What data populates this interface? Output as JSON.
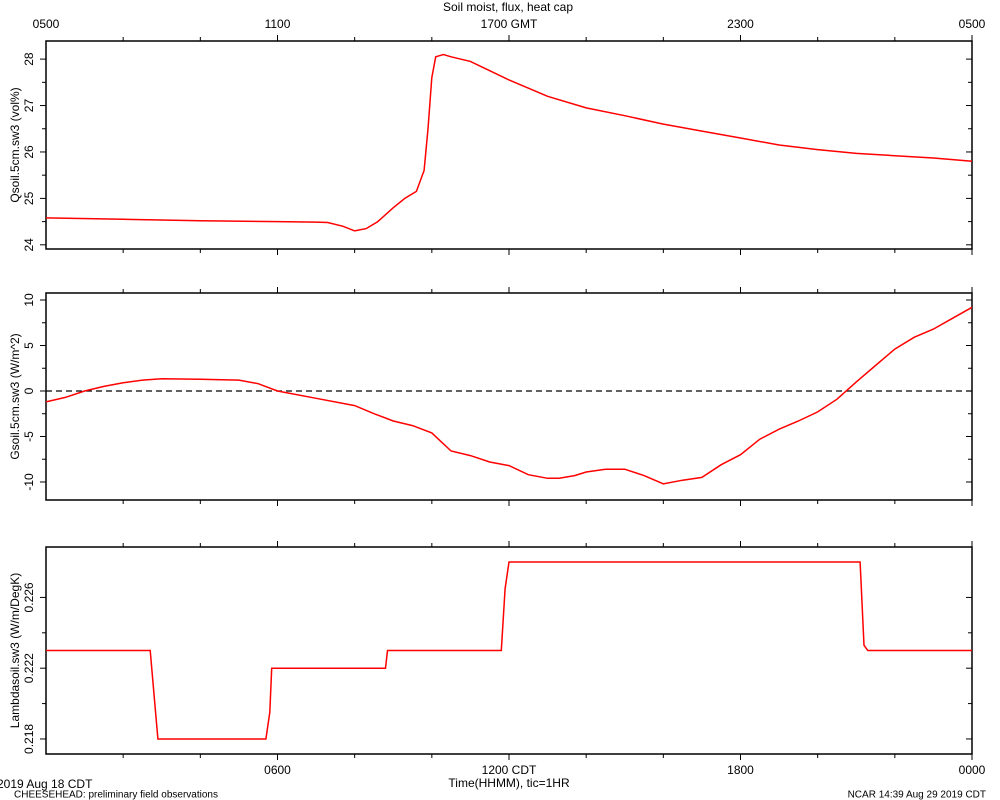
{
  "header": {
    "title": "Soil moist, flux, heat cap"
  },
  "footer": {
    "date": "2019 Aug 18 CDT",
    "xlabel": "Time(HHMM), tic=1HR",
    "left": "CHEESEHEAD: preliminary field observations",
    "right": "NCAR 14:39 Aug 29 2019 CDT"
  },
  "chart_data": [
    {
      "type": "line",
      "ylabel": "Qsoil.5cm.sw3 (vol%)",
      "color": "#ff0000",
      "xlim": [
        0,
        24
      ],
      "ylim": [
        23.91,
        28.39
      ],
      "yticks": [
        24,
        25,
        26,
        27,
        28
      ],
      "x2ticks": [
        {
          "value": 0,
          "label": "0500"
        },
        {
          "value": 6,
          "label": "1100"
        },
        {
          "value": 12,
          "label": "1700 GMT"
        },
        {
          "value": 18,
          "label": "2300"
        },
        {
          "value": 24,
          "label": "0500"
        }
      ],
      "x": [
        0,
        2,
        4,
        6,
        7,
        7.3,
        7.7,
        8,
        8.3,
        8.6,
        9,
        9.3,
        9.6,
        9.8,
        9.9,
        10,
        10.1,
        10.3,
        10.5,
        11,
        11.5,
        12,
        13,
        14,
        15,
        16,
        17,
        18,
        19,
        20,
        21,
        22,
        23,
        24
      ],
      "values": [
        24.58,
        24.55,
        24.52,
        24.5,
        24.49,
        24.48,
        24.4,
        24.3,
        24.35,
        24.5,
        24.8,
        25.0,
        25.15,
        25.6,
        26.5,
        27.6,
        28.05,
        28.1,
        28.05,
        27.95,
        27.75,
        27.55,
        27.2,
        26.95,
        26.78,
        26.6,
        26.45,
        26.3,
        26.15,
        26.05,
        25.97,
        25.92,
        25.87,
        25.8
      ]
    },
    {
      "type": "line",
      "ylabel": "Gsoil.5cm.sw3 (W/m^2)",
      "color": "#ff0000",
      "zero_line": true,
      "xlim": [
        0,
        24
      ],
      "ylim": [
        -11.98,
        10.77
      ],
      "yticks": [
        -10,
        -5,
        0,
        5,
        10
      ],
      "x": [
        0,
        0.5,
        1,
        1.5,
        2,
        2.5,
        3,
        4,
        5,
        5.5,
        6,
        7,
        8,
        8.5,
        9,
        9.5,
        10,
        10.3,
        10.5,
        11,
        11.5,
        12,
        12.5,
        13,
        13.3,
        13.7,
        14,
        14.5,
        15,
        15.5,
        16,
        16.5,
        17,
        17.5,
        18,
        18.5,
        19,
        19.5,
        20,
        20.5,
        21,
        21.5,
        22,
        22.5,
        23,
        23.5,
        24
      ],
      "values": [
        -1.2,
        -0.7,
        0,
        0.5,
        0.9,
        1.2,
        1.35,
        1.3,
        1.2,
        0.8,
        0,
        -0.8,
        -1.6,
        -2.5,
        -3.3,
        -3.8,
        -4.6,
        -5.8,
        -6.6,
        -7.1,
        -7.8,
        -8.2,
        -9.2,
        -9.6,
        -9.6,
        -9.3,
        -8.9,
        -8.6,
        -8.6,
        -9.3,
        -10.2,
        -9.8,
        -9.5,
        -8.1,
        -7.0,
        -5.3,
        -4.2,
        -3.3,
        -2.3,
        -0.9,
        1.0,
        2.8,
        4.6,
        5.9,
        6.8,
        8,
        9.2
      ]
    },
    {
      "type": "line",
      "ylabel": "Lambdasoil.sw3 (W/m/DegK)",
      "color": "#ff0000",
      "xlim": [
        0,
        24
      ],
      "ylim": [
        0.21715,
        0.22885
      ],
      "yticks": [
        0.218,
        0.222,
        0.226
      ],
      "xticks": [
        {
          "value": 6,
          "label": "0600"
        },
        {
          "value": 12,
          "label": "1200 CDT"
        },
        {
          "value": 18,
          "label": "1800"
        },
        {
          "value": 24,
          "label": "0000"
        }
      ],
      "x": [
        0,
        2.7,
        2.9,
        5.7,
        5.8,
        5.85,
        8.8,
        8.85,
        11.8,
        11.9,
        12,
        21.1,
        21.2,
        21.3,
        24
      ],
      "values": [
        0.223,
        0.223,
        0.218,
        0.218,
        0.2195,
        0.222,
        0.222,
        0.223,
        0.223,
        0.2265,
        0.228,
        0.228,
        0.2233,
        0.223,
        0.223
      ]
    }
  ]
}
